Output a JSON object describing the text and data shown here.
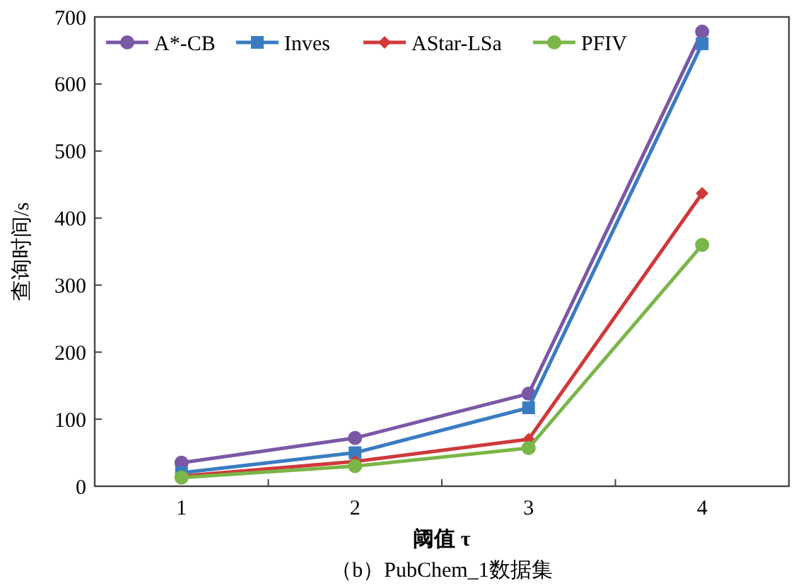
{
  "chart_data": {
    "type": "line",
    "title": "（b）PubChem_1数据集",
    "xlabel": "阈值 τ",
    "ylabel": "查询时间/s",
    "x": [
      1,
      2,
      3,
      4
    ],
    "xlim": [
      0.5,
      4.5
    ],
    "xticks": [
      1,
      {
        "value": 1.5,
        "label": null
      },
      2,
      {
        "value": 2.5,
        "label": null
      },
      3,
      {
        "value": 3.5,
        "label": null
      },
      4
    ],
    "ylim": [
      0,
      700
    ],
    "yticks": [
      0,
      100,
      200,
      300,
      400,
      500,
      600,
      700
    ],
    "legend": "top left",
    "grid": false,
    "line_style": "solid",
    "series": [
      {
        "name": "A*-CB",
        "color": "#7b58a6",
        "marker": "circle",
        "values": [
          35,
          72,
          138,
          678
        ]
      },
      {
        "name": "Inves",
        "color": "#3a7cc2",
        "marker": "square",
        "values": [
          20,
          50,
          117,
          660
        ]
      },
      {
        "name": "AStar-LSa",
        "color": "#d0383a",
        "marker": "diamond",
        "values": [
          15,
          37,
          70,
          437
        ]
      },
      {
        "name": "PFIV",
        "color": "#7ab648",
        "marker": "circle",
        "values": [
          13,
          30,
          57,
          360
        ]
      }
    ]
  }
}
